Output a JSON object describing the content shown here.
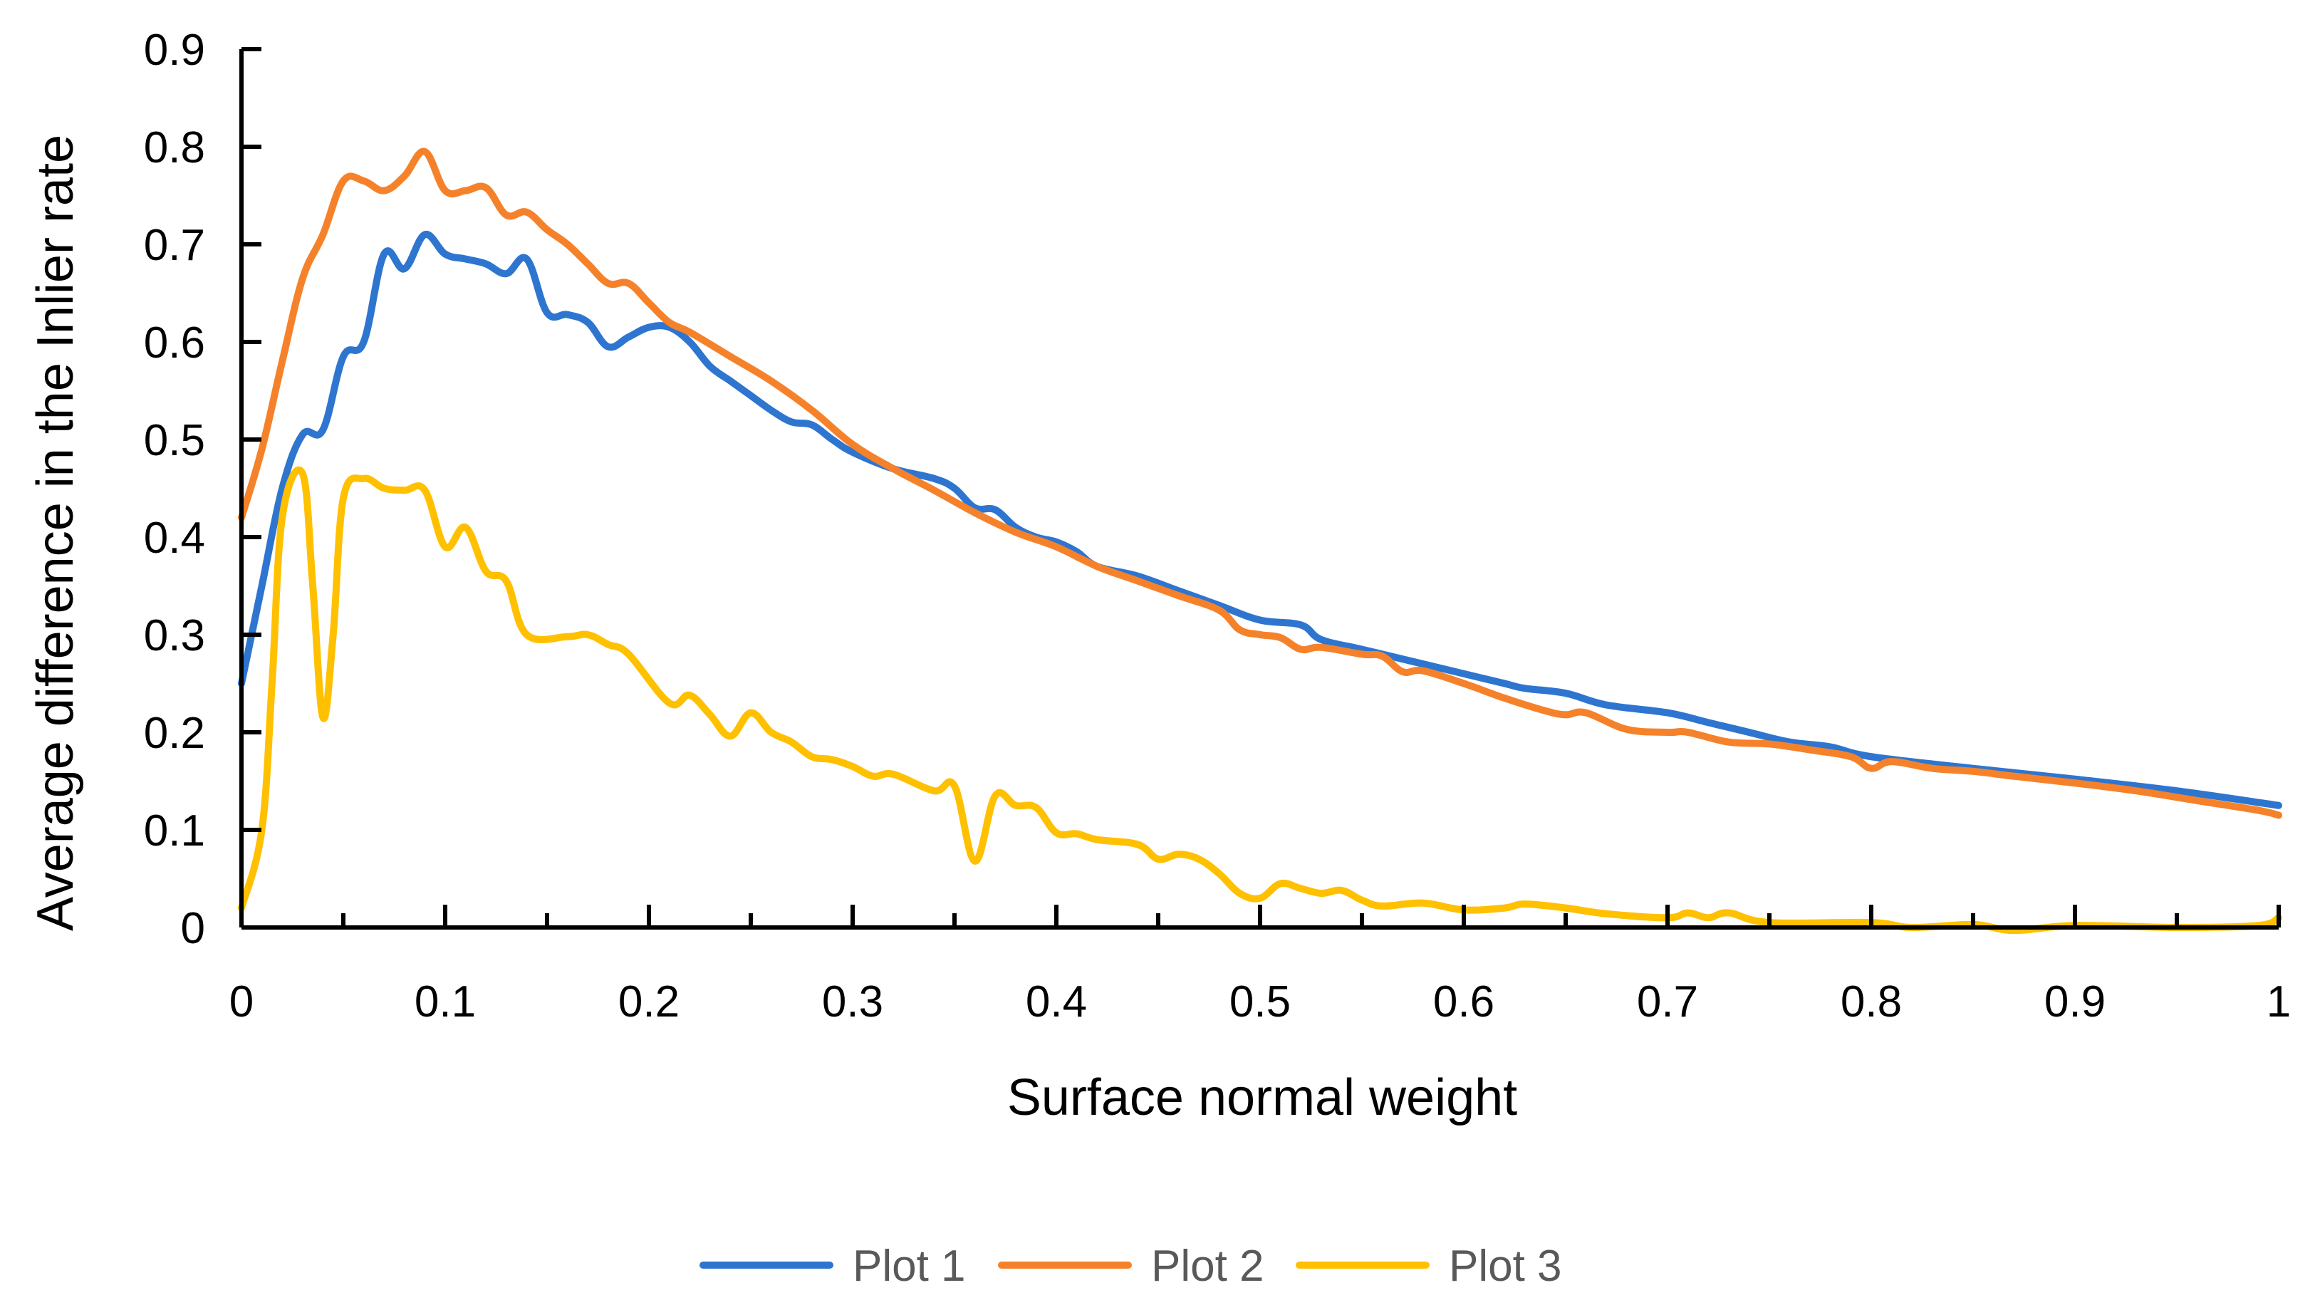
{
  "chart_data": {
    "type": "line",
    "title": "",
    "xlabel": "Surface normal weight",
    "ylabel": "Average difference in the Inlier rate",
    "xlim": [
      0,
      1
    ],
    "ylim": [
      0,
      0.9
    ],
    "x_ticks": [
      "0",
      "0.1",
      "0.2",
      "0.3",
      "0.4",
      "0.5",
      "0.6",
      "0.7",
      "0.8",
      "0.9",
      "1"
    ],
    "y_ticks": [
      "0",
      "0.1",
      "0.2",
      "0.3",
      "0.4",
      "0.5",
      "0.6",
      "0.7",
      "0.8",
      "0.9"
    ],
    "grid": false,
    "legend_position": "bottom",
    "series": [
      {
        "name": "Plot 1",
        "color": "#2E75D0",
        "x": [
          0,
          0.01,
          0.02,
          0.03,
          0.04,
          0.05,
          0.06,
          0.07,
          0.08,
          0.09,
          0.1,
          0.11,
          0.12,
          0.13,
          0.14,
          0.15,
          0.16,
          0.17,
          0.18,
          0.19,
          0.2,
          0.21,
          0.22,
          0.23,
          0.24,
          0.25,
          0.26,
          0.27,
          0.28,
          0.29,
          0.3,
          0.32,
          0.34,
          0.35,
          0.36,
          0.37,
          0.38,
          0.39,
          0.4,
          0.41,
          0.42,
          0.44,
          0.46,
          0.48,
          0.5,
          0.52,
          0.53,
          0.55,
          0.57,
          0.6,
          0.62,
          0.63,
          0.65,
          0.67,
          0.7,
          0.72,
          0.74,
          0.76,
          0.78,
          0.8,
          0.85,
          0.9,
          0.95,
          1.0
        ],
        "y": [
          0.25,
          0.35,
          0.45,
          0.505,
          0.51,
          0.585,
          0.6,
          0.69,
          0.675,
          0.71,
          0.69,
          0.685,
          0.68,
          0.67,
          0.685,
          0.63,
          0.628,
          0.62,
          0.595,
          0.605,
          0.615,
          0.615,
          0.6,
          0.575,
          0.56,
          0.545,
          0.53,
          0.518,
          0.515,
          0.5,
          0.487,
          0.47,
          0.46,
          0.45,
          0.43,
          0.428,
          0.41,
          0.4,
          0.395,
          0.385,
          0.37,
          0.36,
          0.345,
          0.33,
          0.315,
          0.31,
          0.295,
          0.285,
          0.275,
          0.26,
          0.25,
          0.245,
          0.24,
          0.228,
          0.22,
          0.21,
          0.2,
          0.19,
          0.185,
          0.175,
          0.163,
          0.152,
          0.14,
          0.125
        ]
      },
      {
        "name": "Plot 2",
        "color": "#F5822A",
        "x": [
          0,
          0.01,
          0.02,
          0.03,
          0.04,
          0.05,
          0.06,
          0.07,
          0.08,
          0.09,
          0.1,
          0.11,
          0.12,
          0.13,
          0.14,
          0.15,
          0.16,
          0.17,
          0.18,
          0.19,
          0.2,
          0.21,
          0.22,
          0.24,
          0.26,
          0.28,
          0.3,
          0.32,
          0.34,
          0.36,
          0.38,
          0.4,
          0.42,
          0.44,
          0.46,
          0.48,
          0.49,
          0.5,
          0.51,
          0.52,
          0.53,
          0.55,
          0.56,
          0.57,
          0.58,
          0.6,
          0.62,
          0.64,
          0.65,
          0.66,
          0.68,
          0.7,
          0.71,
          0.73,
          0.75,
          0.77,
          0.79,
          0.8,
          0.81,
          0.83,
          0.85,
          0.87,
          0.9,
          0.93,
          0.96,
          0.99,
          1.0
        ],
        "y": [
          0.42,
          0.49,
          0.58,
          0.665,
          0.71,
          0.765,
          0.765,
          0.755,
          0.77,
          0.795,
          0.755,
          0.755,
          0.758,
          0.73,
          0.733,
          0.715,
          0.7,
          0.68,
          0.66,
          0.66,
          0.64,
          0.62,
          0.61,
          0.585,
          0.56,
          0.53,
          0.495,
          0.47,
          0.448,
          0.425,
          0.405,
          0.39,
          0.37,
          0.355,
          0.34,
          0.325,
          0.305,
          0.3,
          0.297,
          0.285,
          0.287,
          0.28,
          0.278,
          0.262,
          0.263,
          0.25,
          0.235,
          0.222,
          0.218,
          0.22,
          0.203,
          0.2,
          0.2,
          0.19,
          0.188,
          0.182,
          0.175,
          0.163,
          0.17,
          0.163,
          0.16,
          0.155,
          0.148,
          0.14,
          0.13,
          0.12,
          0.115
        ]
      },
      {
        "name": "Plot 3",
        "color": "#FFC000",
        "x": [
          0,
          0.01,
          0.015,
          0.02,
          0.03,
          0.035,
          0.04,
          0.045,
          0.05,
          0.06,
          0.07,
          0.08,
          0.09,
          0.1,
          0.11,
          0.12,
          0.13,
          0.14,
          0.16,
          0.17,
          0.18,
          0.19,
          0.21,
          0.22,
          0.23,
          0.24,
          0.25,
          0.26,
          0.27,
          0.28,
          0.29,
          0.3,
          0.31,
          0.32,
          0.34,
          0.35,
          0.36,
          0.37,
          0.38,
          0.39,
          0.4,
          0.41,
          0.42,
          0.44,
          0.45,
          0.46,
          0.47,
          0.48,
          0.49,
          0.5,
          0.51,
          0.52,
          0.53,
          0.54,
          0.55,
          0.56,
          0.58,
          0.6,
          0.62,
          0.63,
          0.65,
          0.67,
          0.7,
          0.71,
          0.72,
          0.73,
          0.75,
          0.8,
          0.82,
          0.85,
          0.87,
          0.9,
          0.95,
          0.99,
          1.0
        ],
        "y": [
          0.02,
          0.1,
          0.25,
          0.42,
          0.465,
          0.35,
          0.215,
          0.3,
          0.44,
          0.46,
          0.45,
          0.448,
          0.448,
          0.39,
          0.41,
          0.365,
          0.355,
          0.3,
          0.298,
          0.3,
          0.29,
          0.28,
          0.23,
          0.238,
          0.218,
          0.196,
          0.22,
          0.2,
          0.19,
          0.175,
          0.172,
          0.165,
          0.155,
          0.157,
          0.14,
          0.145,
          0.068,
          0.135,
          0.125,
          0.123,
          0.097,
          0.096,
          0.09,
          0.085,
          0.07,
          0.075,
          0.07,
          0.055,
          0.035,
          0.03,
          0.045,
          0.04,
          0.035,
          0.038,
          0.028,
          0.022,
          0.025,
          0.018,
          0.02,
          0.024,
          0.02,
          0.014,
          0.01,
          0.015,
          0.01,
          0.015,
          0.005,
          0.005,
          0.0,
          0.003,
          -0.003,
          0.002,
          0.0,
          0.002,
          0.01
        ]
      }
    ]
  }
}
